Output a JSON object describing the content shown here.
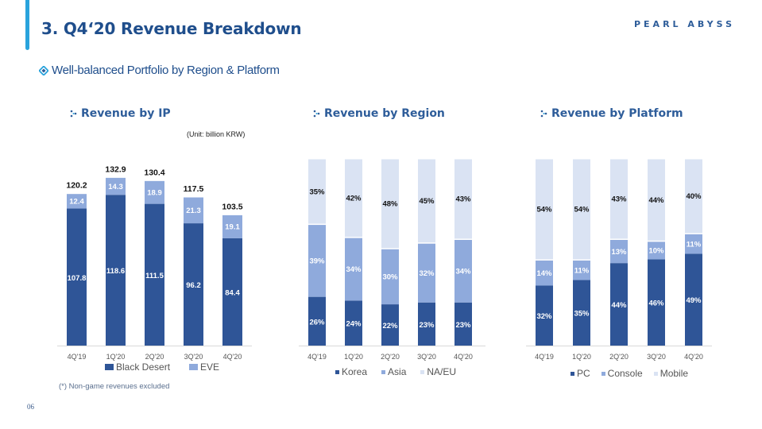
{
  "header": {
    "title": "3. Q4‘20 Revenue Breakdown",
    "brand": "PEARL ABYSS",
    "subtitle": "Well-balanced Portfolio by Region & Platform"
  },
  "footer": {
    "footnote": "(*) Non-game revenues excluded",
    "page_number": "06"
  },
  "colors": {
    "accent": "#29a3dc",
    "title": "#1f4e8c",
    "dark": "#2f5597",
    "mid": "#8faadc",
    "light": "#dae3f3"
  },
  "chart_data": [
    {
      "type": "bar",
      "stacked": true,
      "title": "Revenue by IP",
      "unit_note": "(Unit: billion KRW)",
      "categories": [
        "4Q'19",
        "1Q'20",
        "2Q'20",
        "3Q'20",
        "4Q'20"
      ],
      "series": [
        {
          "name": "Black Desert",
          "color": "#2f5597",
          "values": [
            107.8,
            118.6,
            111.5,
            96.2,
            84.4
          ]
        },
        {
          "name": "EVE",
          "color": "#8faadc",
          "values": [
            12.4,
            14.3,
            18.9,
            21.3,
            19.1
          ]
        }
      ],
      "totals": [
        120.2,
        132.9,
        130.4,
        117.5,
        103.5
      ],
      "legend": "bottom",
      "grid": false,
      "ylim": [
        0,
        140
      ]
    },
    {
      "type": "bar",
      "stacked": true,
      "title": "Revenue by Region",
      "categories": [
        "4Q'19",
        "1Q'20",
        "2Q'20",
        "3Q'20",
        "4Q'20"
      ],
      "series": [
        {
          "name": "Korea",
          "color": "#2f5597",
          "values": [
            26,
            24,
            22,
            23,
            23
          ]
        },
        {
          "name": "Asia",
          "color": "#8faadc",
          "values": [
            39,
            34,
            30,
            32,
            34
          ]
        },
        {
          "name": "NA/EU",
          "color": "#dae3f3",
          "values": [
            35,
            42,
            48,
            45,
            43
          ]
        }
      ],
      "unit": "%",
      "legend": "bottom",
      "grid": false,
      "ylim": [
        0,
        100
      ]
    },
    {
      "type": "bar",
      "stacked": true,
      "title": "Revenue by Platform",
      "categories": [
        "4Q'19",
        "1Q'20",
        "2Q'20",
        "3Q'20",
        "4Q'20"
      ],
      "series": [
        {
          "name": "PC",
          "color": "#2f5597",
          "values": [
            32,
            35,
            44,
            46,
            49
          ]
        },
        {
          "name": "Console",
          "color": "#8faadc",
          "values": [
            14,
            11,
            13,
            10,
            11
          ]
        },
        {
          "name": "Mobile",
          "color": "#dae3f3",
          "values": [
            54,
            54,
            43,
            44,
            40
          ]
        }
      ],
      "unit": "%",
      "legend": "bottom",
      "grid": false,
      "ylim": [
        0,
        100
      ]
    }
  ]
}
